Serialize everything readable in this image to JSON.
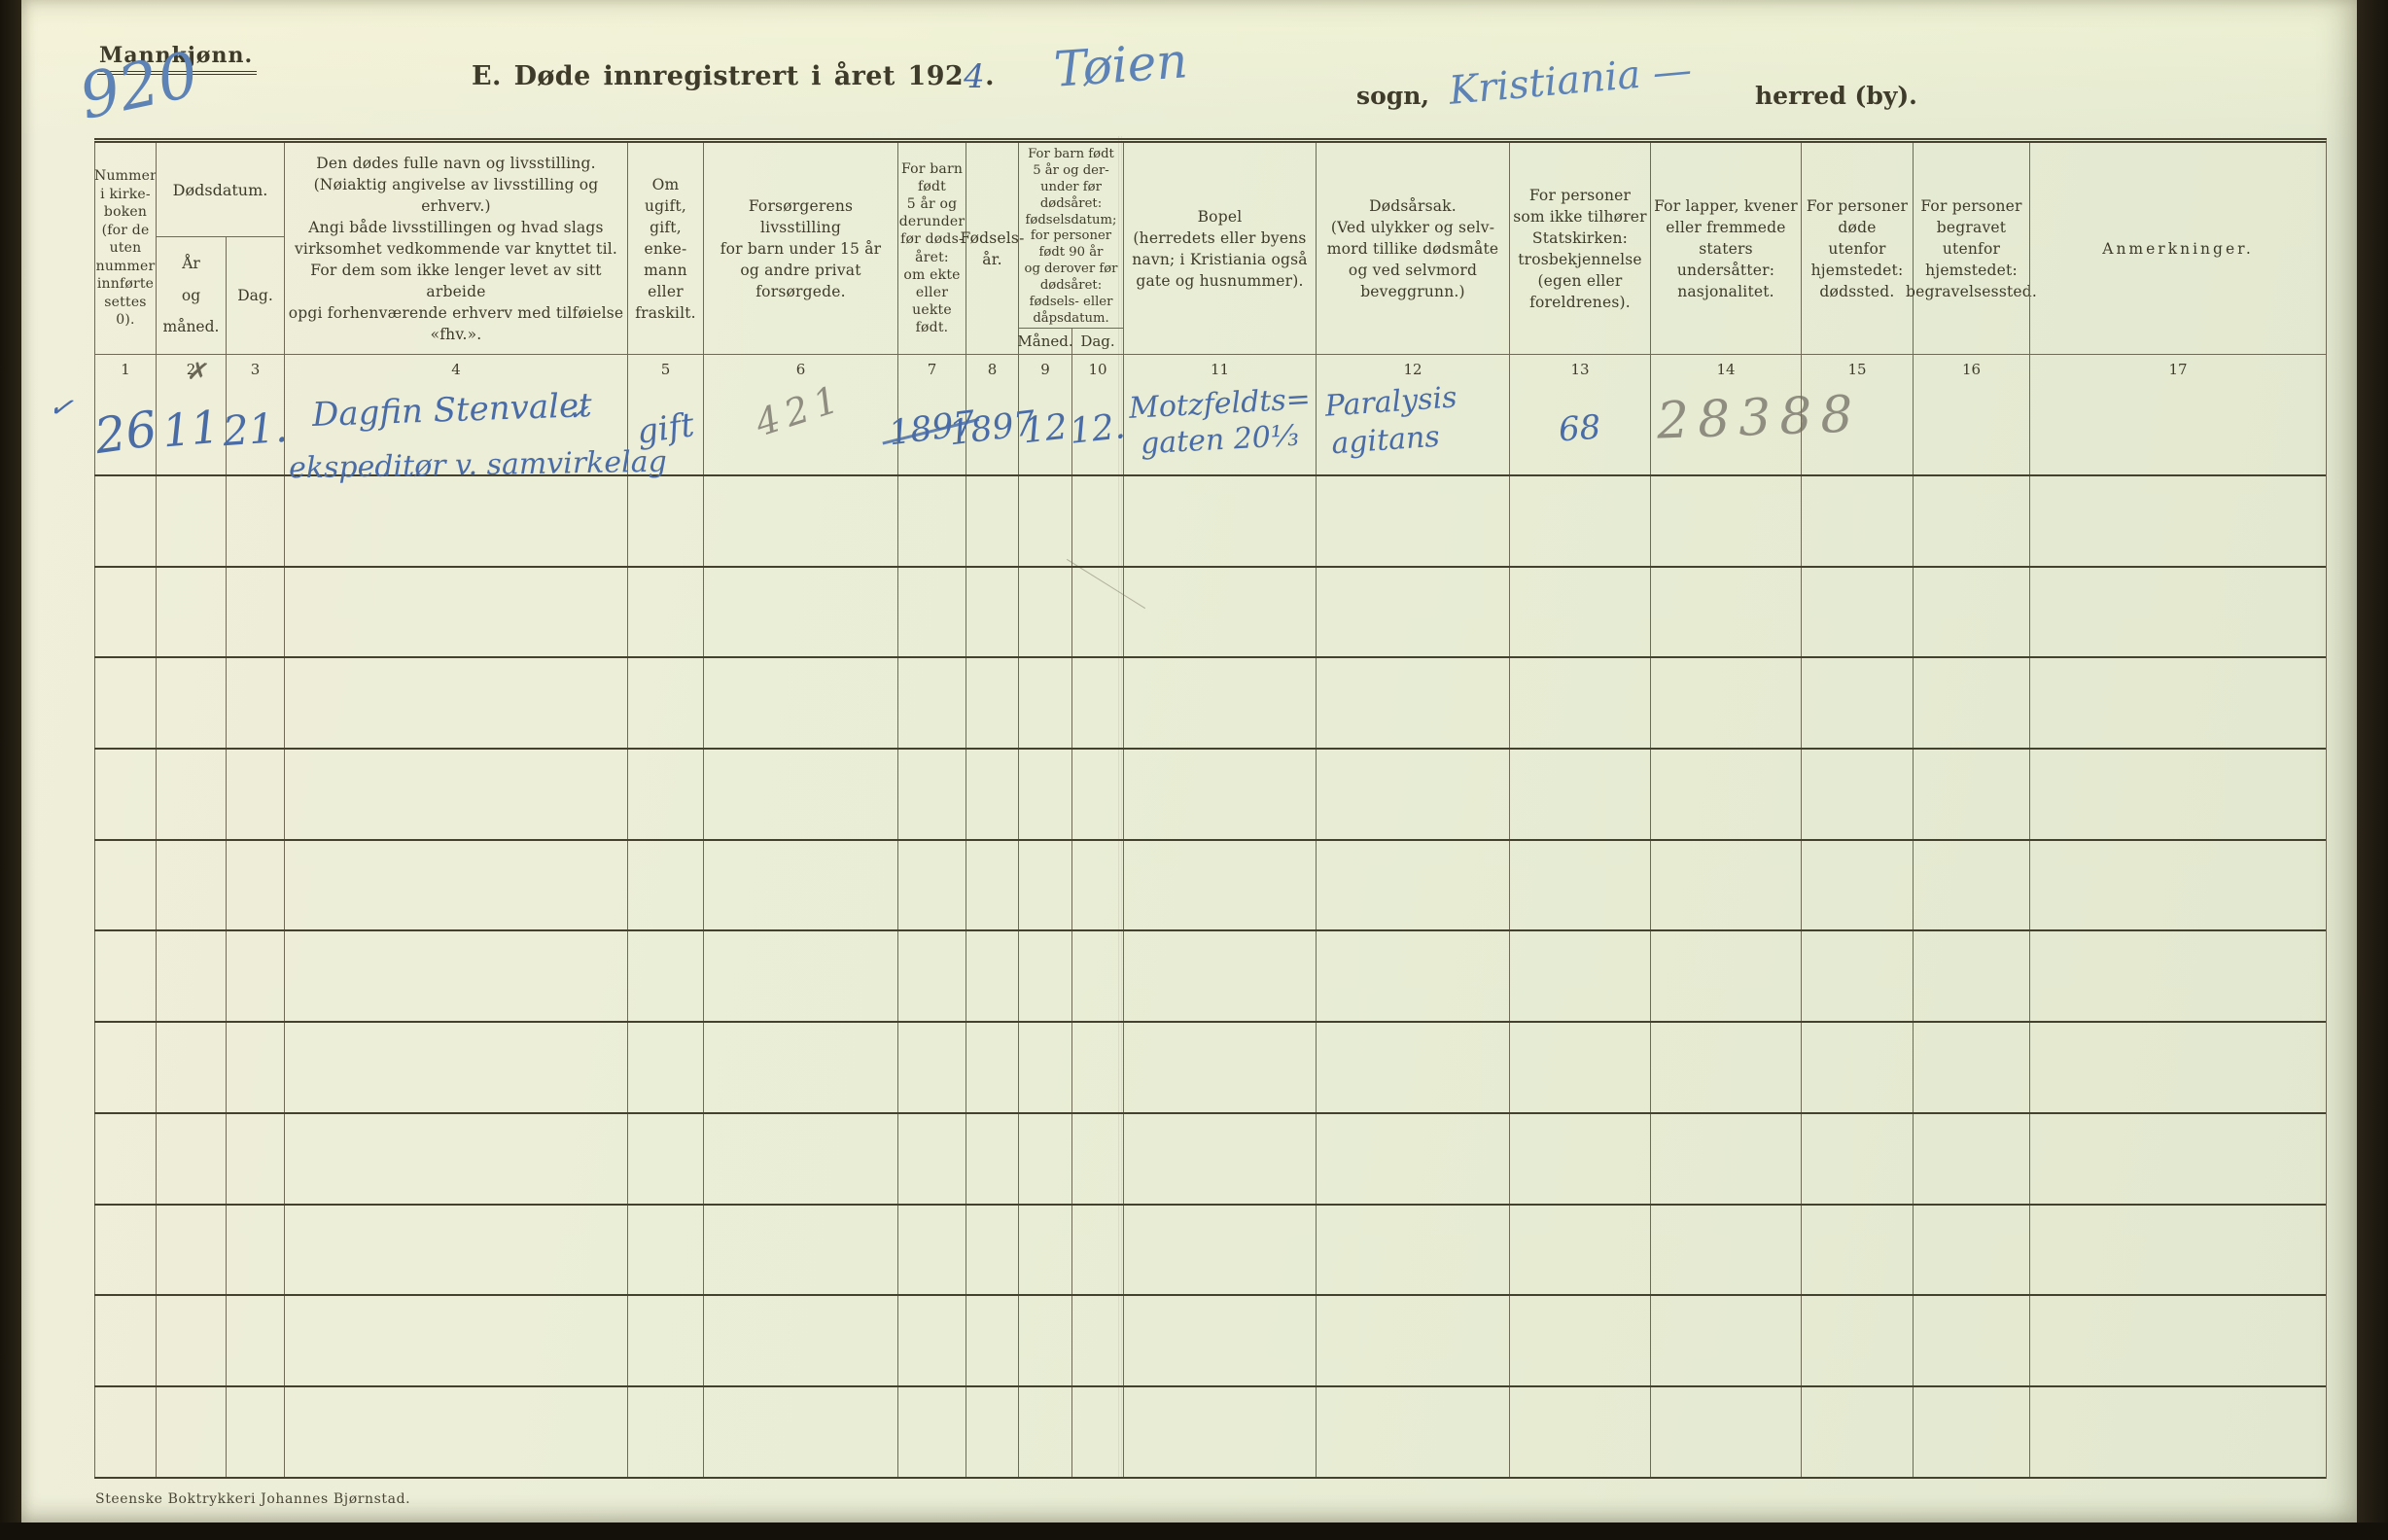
{
  "page": {
    "sex_heading": "Mannkjønn.",
    "sex_number_hw": "920",
    "margin_check_hw": "✓",
    "title": {
      "printed_prefix": "E. Døde innregistrert i året 192",
      "year_suffix_hw": "4",
      "period": ".",
      "parish_hw": "Tøien",
      "sogn_label": "sogn,",
      "municipality_hw": "Kristiania —",
      "herred_label": "herred (by)."
    },
    "printer_credit": "Steenske Boktrykkeri Johannes Bjørnstad."
  },
  "table": {
    "header": {
      "col1": "Nummer\ni kirke-\nboken\n(for de\nuten\nnummer\ninnførte\nsettes\n0).",
      "death_date_group": "Dødsdatum.",
      "col2": "År\nog\nmåned.",
      "col3": "Dag.",
      "col4": "Den dødes fulle navn og livsstilling.\n(Nøiaktig angivelse av livsstilling og erhverv.)\nAngi både livsstillingen og hvad slags\nvirksomhet vedkommende var knyttet til.\nFor dem som ikke lenger levet av sitt arbeide\nopgi forhenværende erhverv med tilføielse «fhv.».",
      "col5": "Om\nugift,\ngift,\nenke-\nmann\neller\nfraskilt.",
      "col6": "Forsørgerens\nlivsstilling\nfor barn under 15 år\nog andre privat forsørgede.",
      "col7": "For barn\nfødt\n5 år og\nderunder\nfør døds-\nåret:\nom ekte\neller\nuekte\nfødt.",
      "col8": "Fødsels-\når.",
      "birth_date_group": "For barn født\n5 år og der-\nunder før\ndødsåret:\nfødselsdatum;\nfor personer\nfødt 90 år\nog derover før\ndødsåret:\nfødsels- eller\ndåpsdatum.",
      "col9": "Måned.",
      "col10": "Dag.",
      "col11": "Bopel\n(herredets eller byens\nnavn; i Kristiania også\ngate og husnummer).",
      "col12": "Dødsårsak.\n(Ved ulykker og selv-\nmord tillike dødsmåte\nog ved selvmord\nbeveggrunn.)",
      "col13": "For personer\nsom ikke tilhører\nStatskirken:\ntrosbekjennelse\n(egen eller foreldrenes).",
      "col14": "For lapper, kvener\neller fremmede\nstaters undersåtter:\nnasjonalitet.",
      "col15": "For personer døde\nutenfor hjemstedet:\ndødssted.",
      "col16": "For personer begravet\nutenfor hjemstedet:\nbegravelsessted.",
      "col17": "Anmerkninger."
    },
    "column_numbers": [
      "1",
      "2",
      "3",
      "4",
      "5",
      "6",
      "7",
      "8",
      "9",
      "10",
      "11",
      "12",
      "13",
      "14",
      "15",
      "16",
      "17"
    ],
    "entry_row": {
      "church_book_number": "26",
      "death_month": "11",
      "death_month_mark": "✗",
      "death_day": "21.",
      "name": "Dagfin Stenvalet",
      "name_check": "✓",
      "occupation": "ekspeditør v. samvirkelag",
      "marital_status": "gift",
      "provider_note_pencil": "421",
      "birth_year_struck": "1897",
      "birth_year": "1897",
      "birth_month": "12",
      "birth_day": "12.",
      "residence_line1": "Motzfeldts=",
      "residence_line2": "gaten 20¹⁄₃",
      "cause_line1": "Paralysis",
      "cause_line2": "agitans",
      "denomination_note": "68",
      "pencil_number": "28388"
    },
    "empty_row_count": 11
  }
}
